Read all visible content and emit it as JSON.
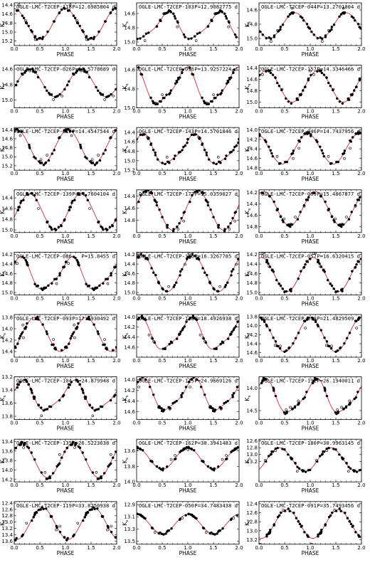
{
  "chart_data": [
    {
      "type": "scatter",
      "title": "OGLE-LMC-T2CEP-118",
      "period": "P=12.6985804 d",
      "xlabel": "PHASE",
      "ylabel": "Ks",
      "xlim": [
        0,
        2
      ],
      "ylim": [
        15.3,
        14.35
      ],
      "yticks": [
        14.4,
        14.6,
        14.8,
        15.0,
        15.2
      ],
      "curve": {
        "mean": 14.82,
        "amp": 0.34,
        "shape": "sine",
        "peak": 0.0
      }
    },
    {
      "type": "scatter",
      "title": "OGLE-LMC-T2CEP-103",
      "period": "P=12.9082775 d",
      "xlabel": "PHASE",
      "ylabel": "Ks",
      "xlim": [
        0,
        2
      ],
      "ylim": [
        15.05,
        14.45
      ],
      "yticks": [
        14.6,
        14.8,
        15.0
      ],
      "curve": {
        "mean": 14.78,
        "amp": 0.2,
        "shape": "skew",
        "peak": 0.6
      }
    },
    {
      "type": "scatter",
      "title": "OGLE-LMC-T2CEP-044",
      "period": "P=13.2701004 d",
      "xlabel": "PHASE",
      "ylabel": "Ks",
      "xlim": [
        0,
        2
      ],
      "ylim": [
        15.1,
        14.5
      ],
      "yticks": [
        14.6,
        14.8,
        15.0
      ],
      "curve": {
        "mean": 14.82,
        "amp": 0.18,
        "shape": "sine",
        "peak": 0.7
      }
    },
    {
      "type": "scatter",
      "title": "OGLE-LMC-T2CEP-026",
      "period": "P=13.5778689 d",
      "xlabel": "PHASE",
      "ylabel": "Ks",
      "xlim": [
        0,
        2
      ],
      "ylim": [
        15.1,
        14.55
      ],
      "yticks": [
        14.6,
        14.8,
        15.0
      ],
      "curve": {
        "mean": 14.78,
        "amp": 0.18,
        "shape": "sine",
        "peak": 0.3
      }
    },
    {
      "type": "scatter",
      "title": "OGLE-LMC-T2CEP-096",
      "period": "P=13.9257224 d",
      "xlabel": "PHASE",
      "ylabel": "Ks",
      "xlim": [
        0,
        2
      ],
      "ylim": [
        15.0,
        14.55
      ],
      "yticks": [
        14.6,
        14.8,
        15.0
      ],
      "curve": {
        "mean": 14.78,
        "amp": 0.2,
        "shape": "skew",
        "peak": 0.95
      }
    },
    {
      "type": "scatter",
      "title": "OGLE-LMC-T2CEP-157",
      "period": "P=14.3346466 d",
      "xlabel": "PHASE",
      "ylabel": "Ks",
      "xlim": [
        0,
        2
      ],
      "ylim": [
        15.1,
        14.35
      ],
      "yticks": [
        14.4,
        14.6,
        14.8,
        15.0
      ],
      "curve": {
        "mean": 14.72,
        "amp": 0.28,
        "shape": "sine",
        "peak": 0.15
      }
    },
    {
      "type": "scatter",
      "title": "OGLE-LMC-T2CEP-017",
      "period": "P=14.4547544 d",
      "xlabel": "PHASE",
      "ylabel": "Ks",
      "xlim": [
        0,
        2
      ],
      "ylim": [
        15.3,
        14.35
      ],
      "yticks": [
        14.4,
        14.6,
        14.8,
        15.0,
        15.2
      ],
      "curve": {
        "mean": 14.78,
        "amp": 0.38,
        "shape": "sine",
        "peak": 0.05
      }
    },
    {
      "type": "scatter",
      "title": "OGLE-LMC-T2CEP-143",
      "period": "P=14.5701846 d",
      "xlabel": "PHASE",
      "ylabel": "Ks",
      "xlim": [
        0,
        2
      ],
      "ylim": [
        15.2,
        14.3
      ],
      "yticks": [
        14.4,
        14.6,
        14.8,
        15.0,
        15.2
      ],
      "curve": {
        "mean": 14.78,
        "amp": 0.34,
        "shape": "skew",
        "peak": 0.1
      }
    },
    {
      "type": "scatter",
      "title": "OGLE-LMC-T2CEP-046",
      "period": "P=14.7437956 d",
      "xlabel": "PHASE",
      "ylabel": "Ks",
      "xlim": [
        0,
        2
      ],
      "ylim": [
        14.85,
        13.95
      ],
      "yticks": [
        14.0,
        14.2,
        14.4,
        14.6,
        14.8
      ],
      "curve": {
        "mean": 14.4,
        "amp": 0.32,
        "shape": "sine",
        "peak": 0.95
      }
    },
    {
      "type": "scatter",
      "title": "OGLE-LMC-T2CEP-139",
      "period": "P=14.7604104 d",
      "xlabel": "PHASE",
      "ylabel": "Ks",
      "xlim": [
        0,
        2
      ],
      "ylim": [
        15.05,
        14.25
      ],
      "yticks": [
        14.4,
        14.6,
        14.8,
        15.0
      ],
      "curve": {
        "mean": 14.66,
        "amp": 0.34,
        "shape": "sine",
        "peak": 0.3
      }
    },
    {
      "type": "scatter",
      "title": "OGLE-LMC-T2CEP-177",
      "period": "P=15.0359027 d",
      "xlabel": "PHASE",
      "ylabel": "Ks",
      "xlim": [
        0,
        2
      ],
      "ylim": [
        15.0,
        14.3
      ],
      "yticks": [
        14.4,
        14.6,
        14.8
      ],
      "curve": {
        "mean": 14.64,
        "amp": 0.32,
        "shape": "sine",
        "peak": 0.2
      }
    },
    {
      "type": "scatter",
      "title": "OGLE-LMC-T2CEP-099",
      "period": "P=15.4867877 d",
      "xlabel": "PHASE",
      "ylabel": "Ks",
      "xlim": [
        0,
        2
      ],
      "ylim": [
        14.9,
        14.15
      ],
      "yticks": [
        14.2,
        14.4,
        14.6,
        14.8
      ],
      "curve": {
        "mean": 14.48,
        "amp": 0.3,
        "shape": "sine",
        "peak": 0.1
      }
    },
    {
      "type": "scatter",
      "title": "OGLE-LMC-T2CEP-086",
      "period": "P=15.8455 d",
      "xlabel": "PHASE",
      "ylabel": "Ks",
      "xlim": [
        0,
        2
      ],
      "ylim": [
        15.05,
        14.15
      ],
      "yticks": [
        14.2,
        14.4,
        14.6,
        14.8,
        15.0
      ],
      "curve": {
        "mean": 14.62,
        "amp": 0.36,
        "shape": "skew",
        "peak": 0.1
      }
    },
    {
      "type": "scatter",
      "title": "OGLE-LMC-T2CEP-126",
      "period": "P=16.3267785 d",
      "xlabel": "PHASE",
      "ylabel": "Ks",
      "xlim": [
        0,
        2
      ],
      "ylim": [
        15.05,
        14.15
      ],
      "yticks": [
        14.2,
        14.4,
        14.6,
        14.8,
        15.0
      ],
      "curve": {
        "mean": 14.6,
        "amp": 0.38,
        "shape": "sine",
        "peak": 0.1
      }
    },
    {
      "type": "scatter",
      "title": "OGLE-LMC-T2CEP-057",
      "period": "P=16.6320415 d",
      "xlabel": "PHASE",
      "ylabel": "Ks",
      "xlim": [
        0,
        2
      ],
      "ylim": [
        15.05,
        14.15
      ],
      "yticks": [
        14.2,
        14.4,
        14.6,
        14.8,
        15.0
      ],
      "curve": {
        "mean": 14.62,
        "amp": 0.36,
        "shape": "sine",
        "peak": 0.05
      }
    },
    {
      "type": "scatter",
      "title": "OGLE-LMC-T2CEP-093",
      "period": "P=17.5930492 d",
      "xlabel": "PHASE",
      "ylabel": "Ks",
      "xlim": [
        0,
        2
      ],
      "ylim": [
        14.5,
        13.75
      ],
      "yticks": [
        13.8,
        14.0,
        14.2,
        14.4
      ],
      "curve": {
        "mean": 14.1,
        "amp": 0.3,
        "shape": "sine",
        "peak": 0.4
      }
    },
    {
      "type": "scatter",
      "title": "OGLE-LMC-T2CEP-128",
      "period": "P=18.4926938 d",
      "xlabel": "PHASE",
      "ylabel": "Ks",
      "xlim": [
        0,
        2
      ],
      "ylim": [
        14.8,
        13.95
      ],
      "yticks": [
        14.0,
        14.2,
        14.4,
        14.6
      ],
      "curve": {
        "mean": 14.35,
        "amp": 0.34,
        "shape": "skew",
        "peak": 0.05
      }
    },
    {
      "type": "scatter",
      "title": "OGLE-LMC-T2CEP-058",
      "period": "P=21.4829509 d",
      "xlabel": "PHASE",
      "ylabel": "Ks",
      "xlim": [
        0,
        2
      ],
      "ylim": [
        14.7,
        13.75
      ],
      "yticks": [
        13.8,
        14.0,
        14.2,
        14.4,
        14.6
      ],
      "curve": {
        "mean": 14.2,
        "amp": 0.38,
        "shape": "sine",
        "peak": 0.0
      }
    },
    {
      "type": "scatter",
      "title": "OGLE-LMC-T2CEP-104",
      "period": "P=24.879948 d",
      "xlabel": "PHASE",
      "ylabel": "Ks",
      "xlim": [
        0,
        2
      ],
      "ylim": [
        13.85,
        13.2
      ],
      "yticks": [
        13.2,
        13.4,
        13.6,
        13.8
      ],
      "curve": {
        "mean": 13.5,
        "amp": 0.24,
        "shape": "skew",
        "peak": 0.15
      }
    },
    {
      "type": "scatter",
      "title": "OGLE-LMC-T2CEP-115",
      "period": "P=24.9669126 d",
      "xlabel": "PHASE",
      "ylabel": "Ks",
      "xlim": [
        0,
        2
      ],
      "ylim": [
        14.75,
        13.95
      ],
      "yticks": [
        14.0,
        14.2,
        14.4,
        14.6
      ],
      "curve": {
        "mean": 14.3,
        "amp": 0.32,
        "shape": "skew",
        "peak": 0.1
      }
    },
    {
      "type": "scatter",
      "title": "OGLE-LMC-T2CEP-192",
      "period": "P=26.1940011 d",
      "xlabel": "PHASE",
      "ylabel": "Ks",
      "xlim": [
        0,
        2
      ],
      "ylim": [
        14.7,
        13.75
      ],
      "yticks": [
        14.0,
        14.5
      ],
      "curve": {
        "mean": 14.2,
        "amp": 0.4,
        "shape": "skew",
        "peak": 0.1
      }
    },
    {
      "type": "scatter",
      "title": "OGLE-LMC-T2CEP-135",
      "period": "P=26.5223638 d",
      "xlabel": "PHASE",
      "ylabel": "Ks",
      "xlim": [
        0,
        2
      ],
      "ylim": [
        14.25,
        13.35
      ],
      "yticks": [
        13.4,
        13.6,
        13.8,
        14.0,
        14.2
      ],
      "curve": {
        "mean": 13.8,
        "amp": 0.36,
        "shape": "sine",
        "peak": 0.15
      }
    },
    {
      "type": "scatter",
      "title": "OGLE-LMC-T2CEP-162",
      "period": "P=30.3941483 d",
      "xlabel": "PHASE",
      "ylabel": "Ks",
      "xlim": [
        0,
        2
      ],
      "ylim": [
        14.0,
        13.45
      ],
      "yticks": [
        13.6,
        13.8,
        14.0
      ],
      "curve": {
        "mean": 13.7,
        "amp": 0.14,
        "shape": "sine",
        "peak": 0.0
      }
    },
    {
      "type": "scatter",
      "title": "OGLE-LMC-T2CEP-180",
      "period": "P=30.9963145 d",
      "xlabel": "PHASE",
      "ylabel": "Ks",
      "xlim": [
        0,
        2
      ],
      "ylim": [
        13.8,
        12.55
      ],
      "yticks": [
        12.6,
        12.8,
        13.0,
        13.2
      ],
      "curve": {
        "mean": 13.15,
        "amp": 0.35,
        "shape": "sine",
        "peak": 0.4
      }
    },
    {
      "type": "scatter",
      "title": "OGLE-LMC-T2CEP-119",
      "period": "P=33.8250938 d",
      "xlabel": "PHASE",
      "ylabel": "Ks",
      "xlim": [
        0,
        2
      ],
      "ylim": [
        13.7,
        12.35
      ],
      "yticks": [
        12.4,
        12.6,
        12.8,
        13.0,
        13.2,
        13.4,
        13.6
      ],
      "curve": {
        "mean": 13.05,
        "amp": 0.5,
        "shape": "sine",
        "peak": 0.55
      }
    },
    {
      "type": "scatter",
      "title": "OGLE-LMC-T2CEP-050",
      "period": "P=34.7483438 d",
      "xlabel": "PHASE",
      "ylabel": "Ks",
      "xlim": [
        0,
        2
      ],
      "ylim": [
        13.55,
        12.85
      ],
      "yticks": [
        12.9,
        13.1,
        13.3,
        13.5
      ],
      "curve": {
        "mean": 13.22,
        "amp": 0.16,
        "shape": "sine",
        "peak": 0.0
      }
    },
    {
      "type": "scatter",
      "title": "OGLE-LMC-T2CEP-091",
      "period": "P=35.7493456 d",
      "xlabel": "PHASE",
      "ylabel": "Ks",
      "xlim": [
        0,
        2
      ],
      "ylim": [
        13.3,
        12.35
      ],
      "yticks": [
        12.4,
        12.6,
        12.8,
        13.0,
        13.2
      ],
      "curve": {
        "mean": 12.85,
        "amp": 0.32,
        "shape": "sine",
        "peak": 0.55
      }
    }
  ],
  "colors": {
    "model_curve": "#c8323c",
    "points": "#000000",
    "frame": "#000000"
  }
}
